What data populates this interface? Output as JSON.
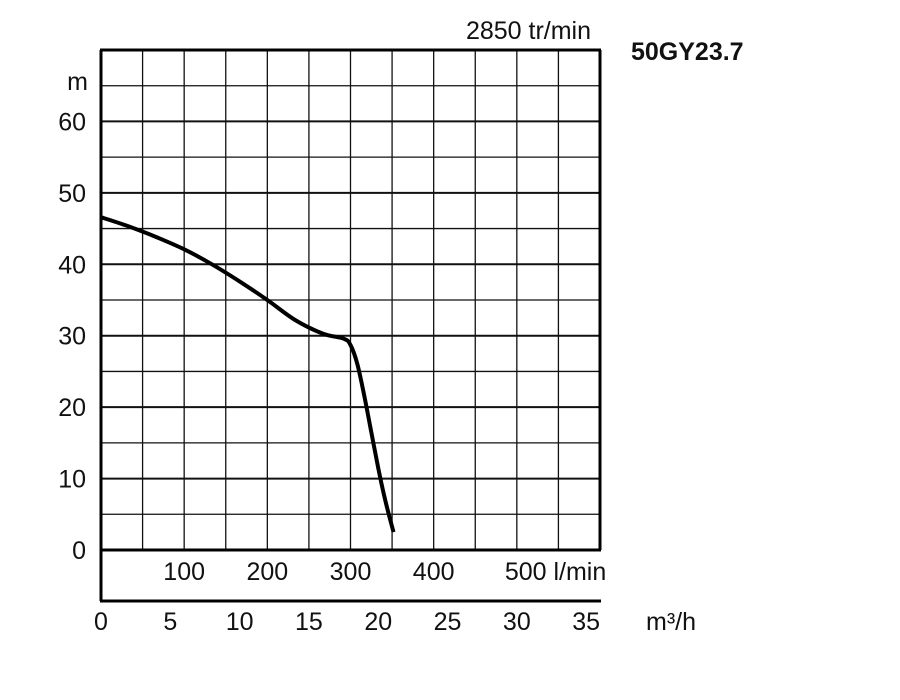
{
  "chart_data": {
    "type": "line",
    "title": "50GY23.7",
    "speed_label": "2850 tr/min",
    "ylabel": "m",
    "ylim": [
      0,
      70
    ],
    "yticks": [
      0,
      10,
      20,
      30,
      40,
      50,
      60
    ],
    "x_units_lpm": "l/min",
    "x_ticks_lpm": [
      "100",
      "200",
      "300",
      "400",
      "500 l/min"
    ],
    "x_ticks_lpm_values": [
      100,
      200,
      300,
      400,
      500
    ],
    "xlabel": "m³/h",
    "xlim": [
      0,
      36
    ],
    "xticks": [
      0,
      5,
      10,
      15,
      20,
      25,
      30,
      35
    ],
    "grid": true,
    "series": [
      {
        "x": [
          0,
          2,
          4,
          6,
          8,
          10,
          12,
          14,
          16,
          17.5,
          18,
          18.5,
          19,
          19.5,
          20,
          20.5,
          21.1
        ],
        "y": [
          46.6,
          45.3,
          43.8,
          42.1,
          40.0,
          37.6,
          35.0,
          32.2,
          30.3,
          29.6,
          28.7,
          26.0,
          21.5,
          16.5,
          11.5,
          7.0,
          2.5
        ]
      }
    ]
  }
}
